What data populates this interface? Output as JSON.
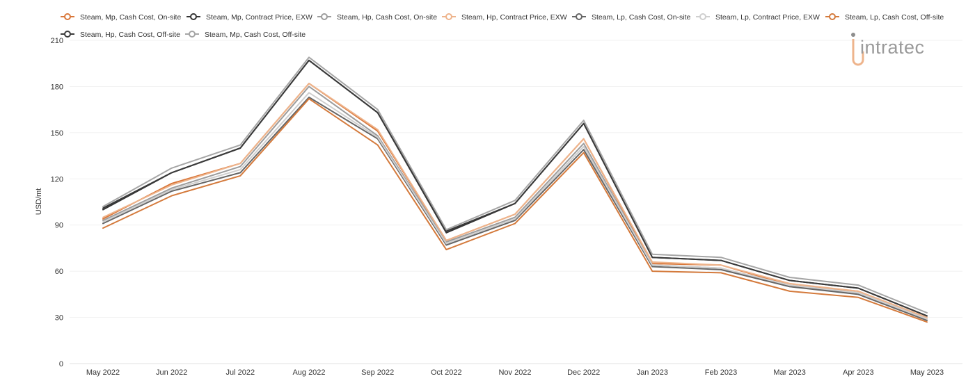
{
  "logo": {
    "text": "intratec"
  },
  "chart_data": {
    "type": "line",
    "title": "",
    "xlabel": "",
    "ylabel": "USD/mt",
    "ylim": [
      0,
      210
    ],
    "yticks": [
      0,
      30,
      60,
      90,
      120,
      150,
      180,
      210
    ],
    "grid": true,
    "legend_position": "top",
    "categories": [
      "May 2022",
      "Jun 2022",
      "Jul 2022",
      "Aug 2022",
      "Sep 2022",
      "Oct 2022",
      "Nov 2022",
      "Dec 2022",
      "Jan 2023",
      "Feb 2023",
      "Mar 2023",
      "Apr 2023",
      "May 2023"
    ],
    "series": [
      {
        "name": "Steam, Mp, Cash Cost, On-site",
        "color": "#d9773a",
        "values": [
          94,
          117,
          130,
          182,
          151,
          80,
          97,
          146,
          65,
          64,
          51,
          47,
          29
        ]
      },
      {
        "name": "Steam, Mp, Contract Price, EXW",
        "color": "#333333",
        "values": [
          100,
          124,
          140,
          197,
          163,
          85,
          104,
          156,
          69,
          67,
          54,
          49,
          31
        ]
      },
      {
        "name": "Steam, Hp, Cash Cost, On-site",
        "color": "#9c9c9c",
        "values": [
          93,
          114,
          128,
          180,
          148,
          79,
          95,
          143,
          64,
          62,
          50,
          46,
          29
        ]
      },
      {
        "name": "Steam, Hp, Contract Price, EXW",
        "color": "#eeb48c",
        "values": [
          95,
          116,
          130,
          182,
          152,
          80,
          97,
          146,
          66,
          64,
          52,
          47,
          30
        ]
      },
      {
        "name": "Steam, Lp, Cash Cost, On-site",
        "color": "#666666",
        "values": [
          91,
          112,
          124,
          173,
          146,
          77,
          93,
          139,
          63,
          61,
          50,
          45,
          28
        ]
      },
      {
        "name": "Steam, Lp, Contract Price, EXW",
        "color": "#cfcfcf",
        "values": [
          92,
          113,
          126,
          176,
          147,
          78,
          94,
          141,
          64,
          62,
          51,
          46,
          29
        ]
      },
      {
        "name": "Steam, Lp, Cash Cost, Off-site",
        "color": "#d47a3c",
        "values": [
          88,
          109,
          122,
          172,
          142,
          74,
          91,
          137,
          60,
          59,
          47,
          43,
          27
        ]
      },
      {
        "name": "Steam, Hp, Cash Cost, Off-site",
        "color": "#3a3a3a",
        "values": [
          101,
          124,
          140,
          197,
          163,
          86,
          104,
          156,
          69,
          67,
          54,
          49,
          31
        ]
      },
      {
        "name": "Steam, Mp, Cash Cost, Off-site",
        "color": "#a6a6a6",
        "values": [
          102,
          127,
          142,
          199,
          165,
          87,
          106,
          158,
          71,
          69,
          56,
          51,
          33
        ]
      }
    ]
  }
}
